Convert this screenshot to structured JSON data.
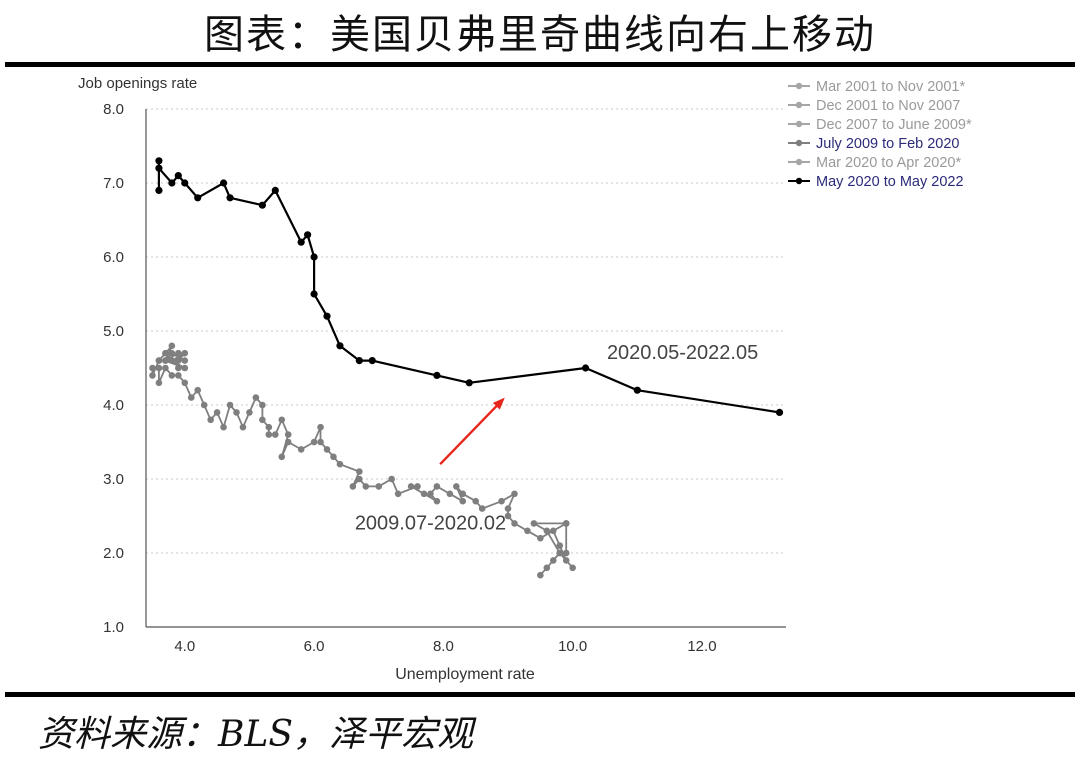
{
  "figure_title": "图表：美国贝弗里奇曲线向右上移动",
  "source_text": "资料来源：BLS，泽平宏观",
  "chart_data": {
    "type": "line",
    "title": "",
    "xlabel": "Unemployment rate",
    "ylabel": "Job openings rate",
    "xlim": [
      3.4,
      13.3
    ],
    "ylim": [
      1.0,
      8.0
    ],
    "x_ticks": [
      "4.0",
      "6.0",
      "8.0",
      "10.0",
      "12.0"
    ],
    "x_tick_values": [
      4,
      6,
      8,
      10,
      12
    ],
    "y_ticks": [
      "1.0",
      "2.0",
      "3.0",
      "4.0",
      "5.0",
      "6.0",
      "7.0",
      "8.0"
    ],
    "y_tick_values": [
      1,
      2,
      3,
      4,
      5,
      6,
      7,
      8
    ],
    "grid": "horizontal dotted",
    "legend_position": "top-right",
    "legend": [
      {
        "label": "Mar 2001 to Nov 2001*",
        "color": "#a6a6a6",
        "text_color": "#9a9a9a"
      },
      {
        "label": "Dec 2001 to Nov 2007",
        "color": "#a6a6a6",
        "text_color": "#9a9a9a"
      },
      {
        "label": "Dec 2007 to June 2009*",
        "color": "#a6a6a6",
        "text_color": "#9a9a9a"
      },
      {
        "label": "July 2009 to Feb 2020",
        "color": "#7f7f7f",
        "text_color": "#2b2b7a"
      },
      {
        "label": "Mar 2020 to Apr 2020*",
        "color": "#a6a6a6",
        "text_color": "#9a9a9a"
      },
      {
        "label": "May 2020 to May 2022",
        "color": "#000000",
        "text_color": "#2b2b7a"
      }
    ],
    "series": [
      {
        "name": "July 2009 to Feb 2020",
        "color": "#7f7f7f",
        "points": [
          [
            9.5,
            1.7
          ],
          [
            9.6,
            1.8
          ],
          [
            9.7,
            1.9
          ],
          [
            9.8,
            2.0
          ],
          [
            10.0,
            1.8
          ],
          [
            9.9,
            1.9
          ],
          [
            9.8,
            2.1
          ],
          [
            9.7,
            2.3
          ],
          [
            9.9,
            2.4
          ],
          [
            9.4,
            2.4
          ],
          [
            9.6,
            2.3
          ],
          [
            9.8,
            2.0
          ],
          [
            9.9,
            2.0
          ],
          [
            9.9,
            2.4
          ],
          [
            9.5,
            2.2
          ],
          [
            9.3,
            2.3
          ],
          [
            9.1,
            2.4
          ],
          [
            9.0,
            2.5
          ],
          [
            9.0,
            2.6
          ],
          [
            9.1,
            2.8
          ],
          [
            8.9,
            2.7
          ],
          [
            8.6,
            2.6
          ],
          [
            8.5,
            2.7
          ],
          [
            8.3,
            2.8
          ],
          [
            8.2,
            2.9
          ],
          [
            8.3,
            2.7
          ],
          [
            8.1,
            2.8
          ],
          [
            7.9,
            2.9
          ],
          [
            7.8,
            2.8
          ],
          [
            7.9,
            2.7
          ],
          [
            7.7,
            2.8
          ],
          [
            7.5,
            2.9
          ],
          [
            7.6,
            2.9
          ],
          [
            7.3,
            2.8
          ],
          [
            7.2,
            3.0
          ],
          [
            7.0,
            2.9
          ],
          [
            6.8,
            2.9
          ],
          [
            6.7,
            3.0
          ],
          [
            6.6,
            2.9
          ],
          [
            6.7,
            3.1
          ],
          [
            6.4,
            3.2
          ],
          [
            6.3,
            3.3
          ],
          [
            6.2,
            3.4
          ],
          [
            6.1,
            3.5
          ],
          [
            6.1,
            3.7
          ],
          [
            6.0,
            3.5
          ],
          [
            5.8,
            3.4
          ],
          [
            5.6,
            3.5
          ],
          [
            5.5,
            3.3
          ],
          [
            5.6,
            3.6
          ],
          [
            5.5,
            3.8
          ],
          [
            5.4,
            3.6
          ],
          [
            5.3,
            3.6
          ],
          [
            5.3,
            3.7
          ],
          [
            5.2,
            3.8
          ],
          [
            5.2,
            4.0
          ],
          [
            5.1,
            4.1
          ],
          [
            5.0,
            3.9
          ],
          [
            4.9,
            3.7
          ],
          [
            4.8,
            3.9
          ],
          [
            4.7,
            4.0
          ],
          [
            4.6,
            3.7
          ],
          [
            4.5,
            3.9
          ],
          [
            4.4,
            3.8
          ],
          [
            4.3,
            4.0
          ],
          [
            4.2,
            4.2
          ],
          [
            4.1,
            4.1
          ],
          [
            4.0,
            4.3
          ],
          [
            3.9,
            4.4
          ],
          [
            3.8,
            4.4
          ],
          [
            3.7,
            4.5
          ],
          [
            3.6,
            4.3
          ],
          [
            3.6,
            4.5
          ],
          [
            3.5,
            4.5
          ],
          [
            3.5,
            4.4
          ],
          [
            3.6,
            4.6
          ],
          [
            3.7,
            4.7
          ],
          [
            3.6,
            4.6
          ],
          [
            3.8,
            4.8
          ],
          [
            3.7,
            4.6
          ],
          [
            3.9,
            4.7
          ],
          [
            3.9,
            4.5
          ],
          [
            3.9,
            4.6
          ],
          [
            4.0,
            4.7
          ],
          [
            3.8,
            4.6
          ],
          [
            4.0,
            4.5
          ],
          [
            3.7,
            4.6
          ],
          [
            3.8,
            4.7
          ],
          [
            4.0,
            4.6
          ]
        ]
      },
      {
        "name": "May 2020 to May 2022",
        "color": "#000000",
        "points": [
          [
            13.2,
            3.9
          ],
          [
            11.0,
            4.2
          ],
          [
            10.2,
            4.5
          ],
          [
            8.4,
            4.3
          ],
          [
            7.9,
            4.4
          ],
          [
            6.9,
            4.6
          ],
          [
            6.7,
            4.6
          ],
          [
            6.4,
            4.8
          ],
          [
            6.2,
            5.2
          ],
          [
            6.0,
            5.5
          ],
          [
            6.0,
            6.0
          ],
          [
            5.9,
            6.3
          ],
          [
            5.8,
            6.2
          ],
          [
            5.4,
            6.9
          ],
          [
            5.2,
            6.7
          ],
          [
            4.7,
            6.8
          ],
          [
            4.6,
            7.0
          ],
          [
            4.2,
            6.8
          ],
          [
            4.0,
            7.0
          ],
          [
            3.9,
            7.1
          ],
          [
            3.8,
            7.0
          ],
          [
            3.6,
            7.2
          ],
          [
            3.6,
            7.3
          ],
          [
            3.6,
            6.9
          ]
        ]
      }
    ],
    "annotations": [
      {
        "text": "2020.05-2022.05",
        "x": 11.7,
        "y": 4.62
      },
      {
        "text": "2009.07-2020.02",
        "x": 7.8,
        "y": 2.32
      }
    ],
    "arrow": {
      "from": [
        7.95,
        3.2
      ],
      "to": [
        8.95,
        4.1
      ],
      "color": "#e8251b"
    }
  }
}
